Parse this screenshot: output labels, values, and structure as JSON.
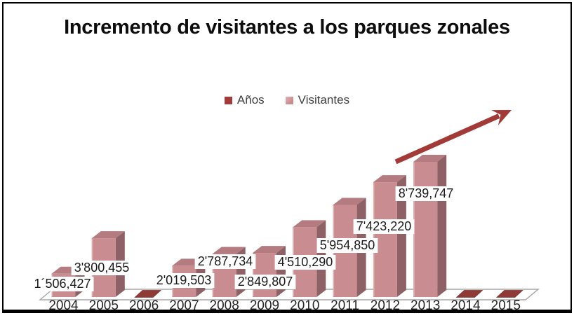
{
  "title": "Incremento de visitantes a los parques zonales",
  "legend": {
    "items": [
      {
        "label": "Años",
        "color": "#a23c3a"
      },
      {
        "label": "Visitantes",
        "color": "#c98c90"
      }
    ]
  },
  "chart_data": {
    "type": "bar",
    "style": "3d-column",
    "title": "Incremento de visitantes a los parques zonales",
    "categories": [
      "2004",
      "2005",
      "2006",
      "2007",
      "2008",
      "2009",
      "2010",
      "2011",
      "2012",
      "2013",
      "2014",
      "2015"
    ],
    "series": [
      {
        "name": "Años",
        "color": "#a23c3a",
        "values": [
          2004,
          2005,
          2006,
          2007,
          2008,
          2009,
          2010,
          2011,
          2012,
          2013,
          2014,
          2015
        ],
        "note": "year values are negligible on the millions scale, rendered as flat dark-red pads; visible only at 2006, 2014 and 2015"
      },
      {
        "name": "Visitantes",
        "color": "#c98c90",
        "values": [
          1506427,
          3800455,
          null,
          2019503,
          2787734,
          2849807,
          4510290,
          5954850,
          7423220,
          8739747,
          null,
          null
        ]
      }
    ],
    "data_labels": [
      "1´506,427",
      "3'800,455",
      "",
      "2'019,503",
      "2'787,734",
      "2'849,807",
      "4'510,290",
      "5'954,850",
      "7'423,220",
      "8'739,747",
      "",
      ""
    ],
    "xlabel": "",
    "ylabel": "",
    "ylim": [
      0,
      8739747
    ],
    "grid": false,
    "legend_position": "top-center",
    "annotations": [
      {
        "type": "arrow",
        "direction": "up-right",
        "color": "#a23b38",
        "meaning": "upward trend of visitors"
      }
    ]
  },
  "colors": {
    "bar_front": "#c98c90",
    "bar_side": "#8d6165",
    "bar_top": "#b47c81",
    "bar_highlight": "#ddafb1",
    "pad": "#8e3a37",
    "arrow": "#a23b38",
    "floor_stroke": "#a6a6a6",
    "label_text": "#1a1a1a",
    "axis_text": "#262626"
  }
}
